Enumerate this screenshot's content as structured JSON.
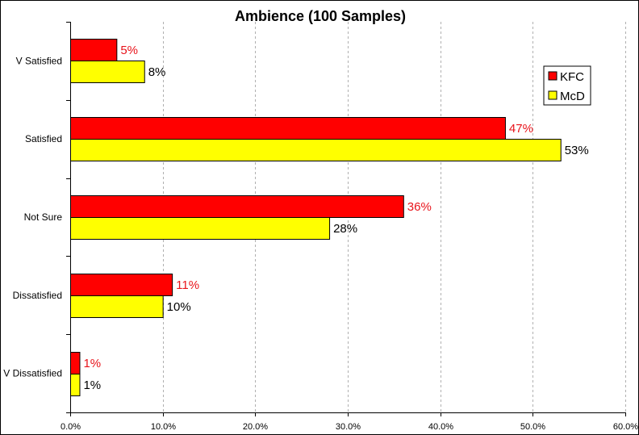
{
  "chart_data": {
    "type": "bar",
    "orientation": "horizontal",
    "title": "Ambience (100 Samples)",
    "categories": [
      "V Satisfied",
      "Satisfied",
      "Not Sure",
      "Dissatisfied",
      "V Dissatisfied"
    ],
    "series": [
      {
        "name": "KFC",
        "values": [
          5,
          47,
          36,
          11,
          1
        ],
        "labels": [
          "5%",
          "47%",
          "36%",
          "11%",
          "1%"
        ],
        "color": "#ff0000",
        "label_color": "#e8141b"
      },
      {
        "name": "McD",
        "values": [
          8,
          53,
          28,
          10,
          1
        ],
        "labels": [
          "8%",
          "53%",
          "28%",
          "10%",
          "1%"
        ],
        "color": "#ffff00",
        "label_color": "#000000"
      }
    ],
    "xlim": [
      0,
      60
    ],
    "xticks": [
      0,
      10,
      20,
      30,
      40,
      50,
      60
    ],
    "xtick_labels": [
      "0.0%",
      "10.0%",
      "20.0%",
      "30.0%",
      "40.0%",
      "50.0%",
      "60.0%"
    ],
    "xgrid": true,
    "grid_style": "dashed",
    "legend_position": "top-right"
  }
}
